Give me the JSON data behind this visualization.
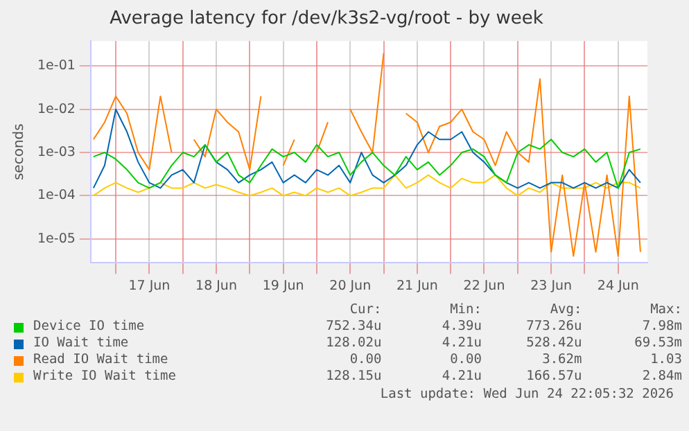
{
  "chart_data": {
    "type": "line",
    "title": "Average latency for /dev/k3s2-vg/root - by week",
    "ylabel": "seconds",
    "log": "y",
    "grid": true,
    "legend": "bottom",
    "marker": "none",
    "line_style": "solid",
    "x": [
      "2026-06-16T16:00",
      "2026-06-16T20:00",
      "2026-06-17T00:00",
      "2026-06-17T04:00",
      "2026-06-17T08:00",
      "2026-06-17T12:00",
      "2026-06-17T16:00",
      "2026-06-17T20:00",
      "2026-06-18T00:00",
      "2026-06-18T04:00",
      "2026-06-18T08:00",
      "2026-06-18T12:00",
      "2026-06-18T16:00",
      "2026-06-18T20:00",
      "2026-06-19T00:00",
      "2026-06-19T04:00",
      "2026-06-19T08:00",
      "2026-06-19T12:00",
      "2026-06-19T16:00",
      "2026-06-19T20:00",
      "2026-06-20T00:00",
      "2026-06-20T04:00",
      "2026-06-20T08:00",
      "2026-06-20T12:00",
      "2026-06-20T16:00",
      "2026-06-20T20:00",
      "2026-06-21T00:00",
      "2026-06-21T04:00",
      "2026-06-21T08:00",
      "2026-06-21T12:00",
      "2026-06-21T16:00",
      "2026-06-21T20:00",
      "2026-06-22T00:00",
      "2026-06-22T04:00",
      "2026-06-22T08:00",
      "2026-06-22T12:00",
      "2026-06-22T16:00",
      "2026-06-22T20:00",
      "2026-06-23T00:00",
      "2026-06-23T04:00",
      "2026-06-23T08:00",
      "2026-06-23T12:00",
      "2026-06-23T16:00",
      "2026-06-23T20:00",
      "2026-06-24T00:00",
      "2026-06-24T04:00",
      "2026-06-24T08:00",
      "2026-06-24T12:00",
      "2026-06-24T16:00",
      "2026-06-24T20:00"
    ],
    "xlim": [
      "2026-06-16T15:00",
      "2026-06-24T22:30"
    ],
    "xticks": [
      {
        "value": "2026-06-17T00:00",
        "label": null
      },
      {
        "value": "2026-06-17T12:00",
        "label": "17 Jun"
      },
      {
        "value": "2026-06-18T00:00",
        "label": null
      },
      {
        "value": "2026-06-18T12:00",
        "label": "18 Jun"
      },
      {
        "value": "2026-06-19T00:00",
        "label": null
      },
      {
        "value": "2026-06-19T12:00",
        "label": "19 Jun"
      },
      {
        "value": "2026-06-20T00:00",
        "label": null
      },
      {
        "value": "2026-06-20T12:00",
        "label": "20 Jun"
      },
      {
        "value": "2026-06-21T00:00",
        "label": null
      },
      {
        "value": "2026-06-21T12:00",
        "label": "21 Jun"
      },
      {
        "value": "2026-06-22T00:00",
        "label": null
      },
      {
        "value": "2026-06-22T12:00",
        "label": "22 Jun"
      },
      {
        "value": "2026-06-23T00:00",
        "label": null
      },
      {
        "value": "2026-06-23T12:00",
        "label": "23 Jun"
      },
      {
        "value": "2026-06-24T00:00",
        "label": null
      },
      {
        "value": "2026-06-24T12:00",
        "label": "24 Jun"
      }
    ],
    "ylim": [
      2.8e-06,
      0.38
    ],
    "yticks": [
      {
        "value": 1e-05,
        "label": "1e-05"
      },
      {
        "value": 0.0001,
        "label": "1e-04"
      },
      {
        "value": 0.001,
        "label": "1e-03"
      },
      {
        "value": 0.01,
        "label": "1e-02"
      },
      {
        "value": 0.1,
        "label": "1e-01"
      }
    ],
    "series": [
      {
        "name": "Device IO time",
        "color": "#00cc00",
        "values": [
          0.0008,
          0.001,
          0.0007,
          0.0004,
          0.0002,
          0.00015,
          0.0002,
          0.0005,
          0.001,
          0.0008,
          0.0015,
          0.0006,
          0.001,
          0.0003,
          0.0002,
          0.0005,
          0.0012,
          0.0008,
          0.001,
          0.0006,
          0.0015,
          0.0008,
          0.001,
          0.0003,
          0.0006,
          0.001,
          0.0005,
          0.0003,
          0.0008,
          0.0004,
          0.0006,
          0.0003,
          0.0005,
          0.001,
          0.0012,
          0.0008,
          0.0003,
          0.0002,
          0.001,
          0.0015,
          0.0012,
          0.002,
          0.001,
          0.0008,
          0.0012,
          0.0006,
          0.001,
          0.00015,
          0.001,
          0.0012
        ]
      },
      {
        "name": "IO Wait time",
        "color": "#0066b3",
        "values": [
          0.00015,
          0.0005,
          0.01,
          0.003,
          0.0006,
          0.0002,
          0.00015,
          0.0003,
          0.0004,
          0.0002,
          0.0015,
          0.0006,
          0.0004,
          0.0002,
          0.0003,
          0.0004,
          0.0006,
          0.0002,
          0.0003,
          0.0002,
          0.0004,
          0.0003,
          0.0005,
          0.0002,
          0.001,
          0.0003,
          0.0002,
          0.0003,
          0.0005,
          0.0015,
          0.003,
          0.002,
          0.002,
          0.003,
          0.001,
          0.0006,
          0.0003,
          0.0002,
          0.00015,
          0.0002,
          0.00015,
          0.0002,
          0.0002,
          0.00015,
          0.0002,
          0.00015,
          0.0002,
          0.00015,
          0.0004,
          0.0002
        ]
      },
      {
        "name": "Read IO Wait time",
        "color": "#ff8000",
        "values": [
          0.002,
          0.005,
          0.02,
          0.008,
          0.001,
          0.0004,
          0.02,
          0.001,
          null,
          0.002,
          0.0008,
          0.01,
          0.005,
          0.003,
          0.0004,
          0.02,
          null,
          0.0005,
          0.002,
          null,
          0.001,
          0.005,
          null,
          0.01,
          0.003,
          0.001,
          0.2,
          null,
          0.008,
          0.005,
          0.001,
          0.004,
          0.005,
          0.01,
          0.003,
          0.002,
          0.0005,
          0.003,
          0.001,
          0.0006,
          0.05,
          5e-06,
          0.0003,
          4e-06,
          0.0002,
          5e-06,
          0.0003,
          4e-06,
          0.02,
          5e-06
        ]
      },
      {
        "name": "Write IO Wait time",
        "color": "#ffcc00",
        "values": [
          0.0001,
          0.00015,
          0.0002,
          0.00015,
          0.00012,
          0.00015,
          0.0002,
          0.00015,
          0.00015,
          0.0002,
          0.00015,
          0.00018,
          0.00015,
          0.00012,
          0.0001,
          0.00012,
          0.00015,
          0.0001,
          0.00012,
          0.0001,
          0.00015,
          0.00012,
          0.00015,
          0.0001,
          0.00012,
          0.00015,
          0.00015,
          0.0003,
          0.00015,
          0.0002,
          0.0003,
          0.0002,
          0.00015,
          0.00025,
          0.0002,
          0.0002,
          0.0003,
          0.00015,
          0.0001,
          0.00015,
          0.00012,
          0.0002,
          0.00015,
          0.00015,
          0.00015,
          0.0002,
          0.00015,
          0.0002,
          0.0002,
          0.00015
        ]
      }
    ],
    "annotations": [
      "Cur:",
      "Min:",
      "Avg:",
      "Max:",
      "752.34u",
      "4.39u",
      "773.26u",
      "7.98m",
      "128.02u",
      "4.21u",
      "528.42u",
      "69.53m",
      "0.00",
      "0.00",
      "3.62m",
      "1.03",
      "128.15u",
      "4.21u",
      "166.57u",
      "2.84m",
      "Last update: Wed Jun 24 22:05:32 2026"
    ]
  }
}
